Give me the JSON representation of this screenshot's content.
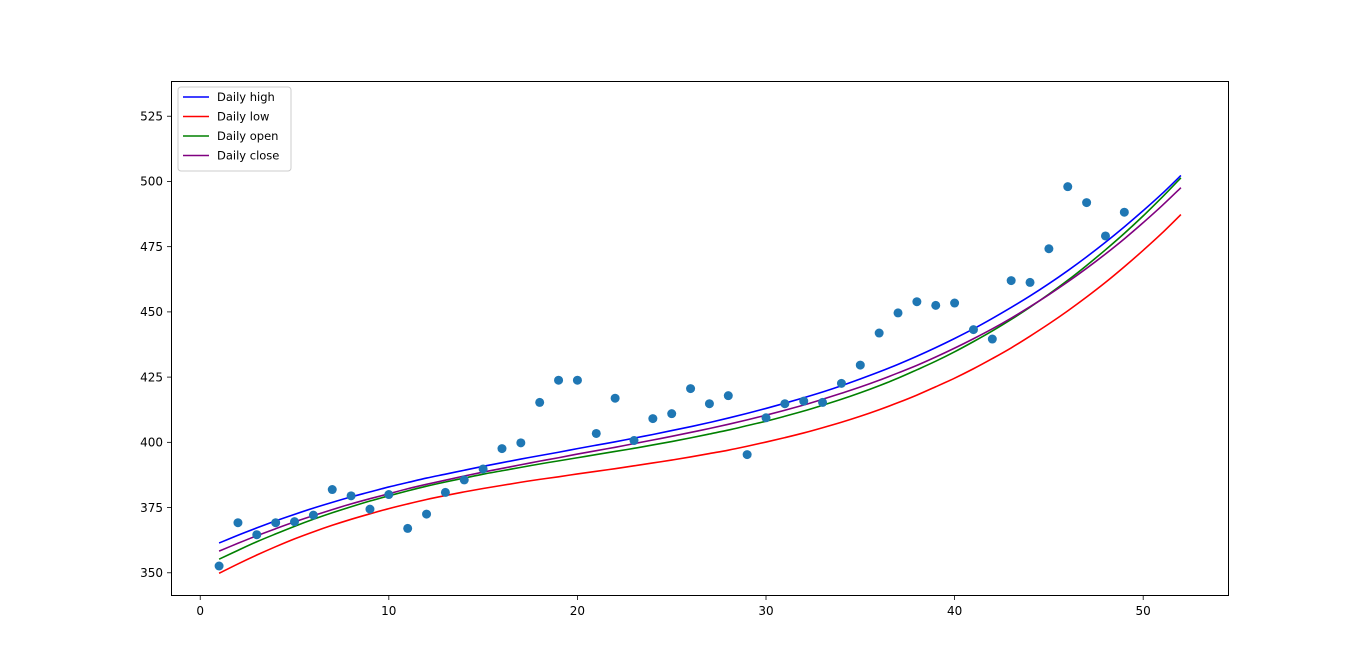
{
  "chart_data": {
    "type": "line",
    "title": "",
    "xlabel": "",
    "ylabel": "",
    "xlim": [
      -1.55,
      54.55
    ],
    "ylim": [
      341.1,
      538.5
    ],
    "xticks": [
      0,
      10,
      20,
      30,
      40,
      50
    ],
    "yticks": [
      350,
      375,
      400,
      425,
      450,
      475,
      500,
      525
    ],
    "grid": false,
    "legend_position": "top-left",
    "series": [
      {
        "name": "Daily high",
        "color": "#0000ff",
        "x": [
          1,
          2,
          3,
          4,
          5,
          6,
          7,
          8,
          9,
          10,
          11,
          12,
          13,
          14,
          15,
          16,
          17,
          18,
          19,
          20,
          21,
          22,
          23,
          24,
          25,
          26,
          27,
          28,
          29,
          30,
          31,
          32,
          33,
          34,
          35,
          36,
          37,
          38,
          39,
          40,
          41,
          42,
          43,
          44,
          45,
          46,
          47,
          48,
          49,
          50,
          51,
          52
        ],
        "y": [
          361.4,
          364.4,
          367.2,
          369.9,
          372.4,
          374.8,
          377.0,
          379.1,
          381.0,
          382.9,
          384.6,
          386.3,
          387.8,
          389.3,
          390.8,
          392.2,
          393.6,
          394.9,
          396.2,
          397.6,
          398.9,
          400.2,
          401.6,
          403.0,
          404.5,
          406.0,
          407.6,
          409.3,
          411.1,
          413.0,
          415.0,
          417.1,
          419.3,
          421.7,
          424.3,
          427.0,
          429.9,
          433.0,
          436.3,
          439.8,
          443.5,
          447.5,
          451.7,
          456.1,
          460.8,
          465.8,
          471.1,
          476.7,
          482.6,
          488.8,
          495.3,
          502.3
        ]
      },
      {
        "name": "Daily low",
        "color": "#ff0000",
        "x": [
          1,
          2,
          3,
          4,
          5,
          6,
          7,
          8,
          9,
          10,
          11,
          12,
          13,
          14,
          15,
          16,
          17,
          18,
          19,
          20,
          21,
          22,
          23,
          24,
          25,
          26,
          27,
          28,
          29,
          30,
          31,
          32,
          33,
          34,
          35,
          36,
          37,
          38,
          39,
          40,
          41,
          42,
          43,
          44,
          45,
          46,
          47,
          48,
          49,
          50,
          51,
          52
        ],
        "y": [
          349.8,
          353.4,
          356.8,
          360.0,
          363.0,
          365.7,
          368.2,
          370.5,
          372.6,
          374.6,
          376.4,
          378.1,
          379.6,
          381.0,
          382.3,
          383.5,
          384.7,
          385.8,
          386.8,
          387.9,
          388.9,
          389.9,
          391.0,
          392.1,
          393.2,
          394.4,
          395.7,
          397.0,
          398.5,
          400.1,
          401.8,
          403.6,
          405.6,
          407.7,
          410.0,
          412.5,
          415.2,
          418.1,
          421.3,
          424.6,
          428.2,
          432.1,
          436.2,
          440.7,
          445.4,
          450.4,
          455.7,
          461.3,
          467.3,
          473.6,
          480.2,
          487.3
        ]
      },
      {
        "name": "Daily open",
        "color": "#008000",
        "x": [
          1,
          2,
          3,
          4,
          5,
          6,
          7,
          8,
          9,
          10,
          11,
          12,
          13,
          14,
          15,
          16,
          17,
          18,
          19,
          20,
          21,
          22,
          23,
          24,
          25,
          26,
          27,
          28,
          29,
          30,
          31,
          32,
          33,
          34,
          35,
          36,
          37,
          38,
          39,
          40,
          41,
          42,
          43,
          44,
          45,
          46,
          47,
          48,
          49,
          50,
          51,
          52
        ],
        "y": [
          355.2,
          358.6,
          361.9,
          364.9,
          367.8,
          370.5,
          373.0,
          375.3,
          377.5,
          379.5,
          381.4,
          383.2,
          384.8,
          386.3,
          387.8,
          389.1,
          390.4,
          391.7,
          392.9,
          394.1,
          395.3,
          396.5,
          397.7,
          399.0,
          400.3,
          401.7,
          403.2,
          404.7,
          406.4,
          408.1,
          410.0,
          412.0,
          414.2,
          416.5,
          419.0,
          421.7,
          424.6,
          427.8,
          431.1,
          434.7,
          438.6,
          442.7,
          447.1,
          451.8,
          456.8,
          462.1,
          467.8,
          473.8,
          480.1,
          486.8,
          493.9,
          501.4
        ]
      },
      {
        "name": "Daily close",
        "color": "#800080",
        "x": [
          1,
          2,
          3,
          4,
          5,
          6,
          7,
          8,
          9,
          10,
          11,
          12,
          13,
          14,
          15,
          16,
          17,
          18,
          19,
          20,
          21,
          22,
          23,
          24,
          25,
          26,
          27,
          28,
          29,
          30,
          31,
          32,
          33,
          34,
          35,
          36,
          37,
          38,
          39,
          40,
          41,
          42,
          43,
          44,
          45,
          46,
          47,
          48,
          49,
          50,
          51,
          52
        ],
        "y": [
          358.3,
          361.3,
          364.2,
          366.9,
          369.5,
          371.9,
          374.2,
          376.4,
          378.4,
          380.3,
          382.2,
          383.9,
          385.5,
          387.1,
          388.6,
          390.0,
          391.4,
          392.8,
          394.1,
          395.5,
          396.8,
          398.1,
          399.5,
          400.9,
          402.3,
          403.8,
          405.3,
          406.9,
          408.6,
          410.4,
          412.3,
          414.3,
          416.5,
          418.8,
          421.2,
          423.8,
          426.6,
          429.5,
          432.7,
          436.1,
          439.7,
          443.5,
          447.6,
          452.0,
          456.6,
          461.5,
          466.7,
          472.2,
          478.0,
          484.2,
          490.7,
          497.6
        ]
      }
    ],
    "scatter": {
      "name": "",
      "color": "#1f77b4",
      "x": [
        1,
        2,
        3,
        4,
        5,
        6,
        7,
        8,
        9,
        10,
        11,
        12,
        13,
        14,
        15,
        16,
        17,
        18,
        19,
        20,
        21,
        22,
        23,
        24,
        25,
        26,
        27,
        28,
        29,
        30,
        31,
        32,
        33,
        34,
        35,
        36,
        37,
        38,
        39,
        40,
        41,
        42,
        43,
        44,
        45,
        46,
        47,
        48,
        49
      ],
      "y": [
        352.6,
        369.2,
        364.6,
        369.2,
        369.6,
        372.1,
        381.9,
        379.5,
        374.4,
        380.0,
        367.0,
        372.5,
        380.8,
        385.6,
        389.8,
        397.6,
        399.8,
        415.3,
        423.8,
        423.8,
        403.4,
        416.9,
        400.7,
        409.1,
        411.0,
        420.6,
        414.8,
        417.9,
        395.3,
        409.4,
        414.8,
        415.8,
        415.3,
        422.6,
        429.6,
        441.9,
        449.6,
        453.9,
        452.5,
        453.4,
        443.2,
        439.6,
        462.0,
        461.3,
        474.2,
        498.0,
        491.9,
        479.1,
        488.2
      ]
    }
  }
}
